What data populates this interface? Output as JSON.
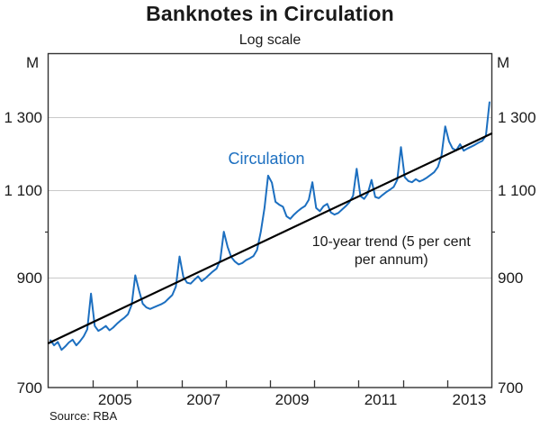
{
  "labels": {
    "title": "Banknotes in Circulation",
    "subtitle": "Log scale",
    "unit_left": "M",
    "unit_right": "M",
    "source": "Source: RBA"
  },
  "colors": {
    "circulation_blue": "#1c6fc0",
    "trend_black": "#000000",
    "gridline_gray": "#c9c9c9",
    "axis_dark": "#333333"
  },
  "chart_data": {
    "type": "line",
    "title": "Banknotes in Circulation",
    "subtitle": "Log scale",
    "ylabel": "M",
    "y_scale": "log",
    "grid": "horizontal-only",
    "xlim": [
      2004,
      2014
    ],
    "ylim_bottom": 700,
    "y_calibration": [
      700,
      1300
    ],
    "y_ticks": [
      {
        "value": 700,
        "label": "700",
        "gridline": false
      },
      {
        "value": 900,
        "label": "900",
        "gridline": true
      },
      {
        "value": 1100,
        "label": "1 100",
        "gridline": true
      },
      {
        "value": 1300,
        "label": "1 300",
        "gridline": true
      }
    ],
    "y_minor_ticks": [
      1000
    ],
    "x_year_ticks": [
      2005,
      2006,
      2007,
      2008,
      2009,
      2010,
      2011,
      2012,
      2013
    ],
    "x_labels": [
      {
        "x": 2005.5,
        "label": "2005"
      },
      {
        "x": 2007.5,
        "label": "2007"
      },
      {
        "x": 2009.5,
        "label": "2009"
      },
      {
        "x": 2011.5,
        "label": "2011"
      },
      {
        "x": 2013.5,
        "label": "2013"
      }
    ],
    "series": [
      {
        "name": "Circulation",
        "kind": "monthly",
        "start_year": 2004,
        "color": "#1c6fc0",
        "width": 2,
        "values": [
          780,
          771,
          777,
          763,
          769,
          776,
          781,
          771,
          778,
          787,
          800,
          868,
          806,
          797,
          801,
          806,
          798,
          803,
          810,
          816,
          821,
          828,
          846,
          905,
          874,
          848,
          841,
          838,
          841,
          844,
          847,
          851,
          858,
          865,
          882,
          945,
          902,
          890,
          888,
          896,
          903,
          893,
          899,
          906,
          913,
          919,
          937,
          1000,
          966,
          944,
          934,
          928,
          931,
          937,
          941,
          946,
          959,
          1000,
          1056,
          1137,
          1119,
          1071,
          1064,
          1059,
          1036,
          1030,
          1040,
          1048,
          1055,
          1061,
          1076,
          1120,
          1056,
          1048,
          1060,
          1066,
          1045,
          1040,
          1044,
          1052,
          1060,
          1070,
          1086,
          1155,
          1085,
          1078,
          1091,
          1126,
          1083,
          1080,
          1088,
          1095,
          1101,
          1108,
          1126,
          1214,
          1133,
          1123,
          1120,
          1128,
          1122,
          1126,
          1132,
          1139,
          1146,
          1160,
          1191,
          1273,
          1230,
          1210,
          1205,
          1222,
          1204,
          1210,
          1215,
          1220,
          1226,
          1231,
          1246,
          1345
        ]
      },
      {
        "name": "10-year trend (5 per cent per annum)",
        "kind": "xy",
        "color": "#000000",
        "width": 2.2,
        "x": [
          2004,
          2014
        ],
        "values": [
          775,
          1252
        ]
      }
    ],
    "annotations": [
      {
        "text": "Circulation",
        "x": 2008.92,
        "y": 1168,
        "color": "#1c6fc0",
        "role": "series-label",
        "name": "circulation-series-label"
      },
      {
        "text": "10-year trend (5 per cent",
        "x": 2011.74,
        "y": 968,
        "color": "#1a1a1a",
        "role": "trend-label",
        "name": "trend-label-line1"
      },
      {
        "text": "per annum)",
        "x": 2011.74,
        "y": 929,
        "color": "#1a1a1a",
        "role": "trend-label",
        "name": "trend-label-line2"
      }
    ]
  }
}
